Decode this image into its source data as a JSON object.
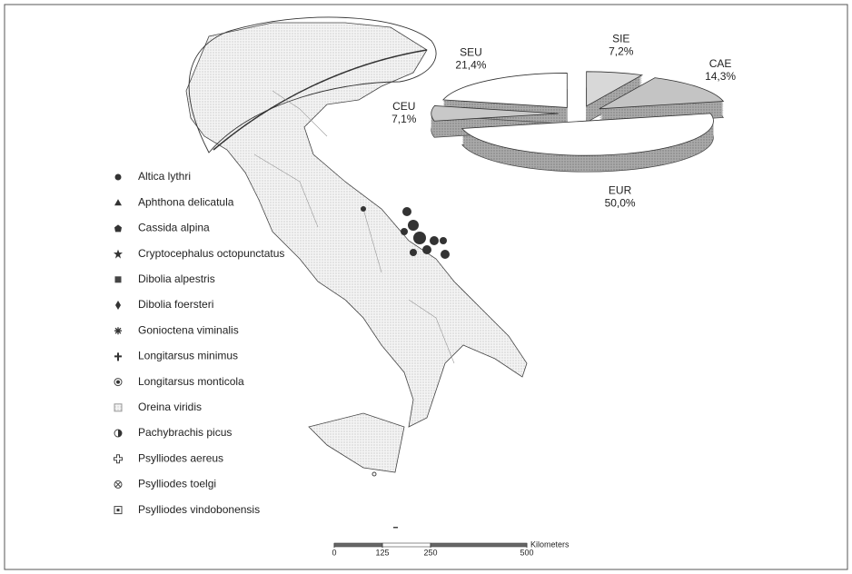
{
  "legend": {
    "items": [
      "Altica lythri",
      "Aphthona delicatula",
      "Cassida alpina",
      "Cryptocephalus octopunctatus",
      "Dibolia alpestris",
      "Dibolia foersteri",
      "Gonioctena viminalis",
      "Longitarsus minimus",
      "Longitarsus monticola",
      "Oreina viridis",
      "Pachybrachis picus",
      "Psylliodes aereus",
      "Psylliodes toelgi",
      "Psylliodes vindobonensis"
    ]
  },
  "chart_data": {
    "type": "pie",
    "categories": [
      "SIE",
      "CAE",
      "EUR",
      "CEU",
      "SEU"
    ],
    "values": [
      7.2,
      14.3,
      50.0,
      7.1,
      21.4
    ],
    "value_labels": [
      "7,2%",
      "14,3%",
      "50,0%",
      "7,1%",
      "21,4%"
    ],
    "colors": [
      "#d8d8d8",
      "#c4c4c4",
      "#ffffff",
      "#c8c8c8",
      "#ffffff"
    ]
  },
  "scale_bar": {
    "ticks": [
      0,
      125,
      250,
      500
    ],
    "unit": "Kilometers"
  }
}
